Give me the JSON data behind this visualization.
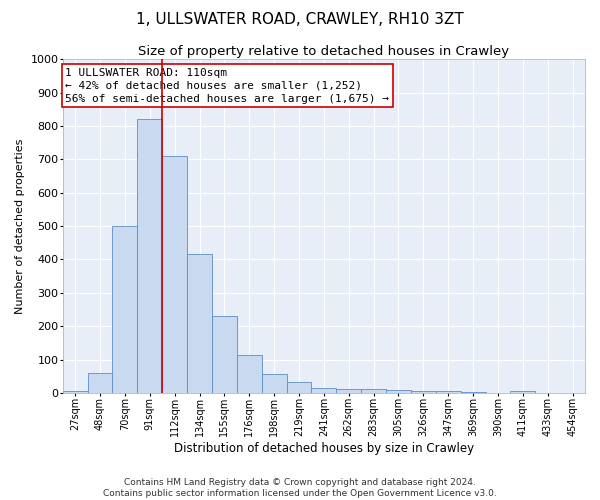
{
  "title1": "1, ULLSWATER ROAD, CRAWLEY, RH10 3ZT",
  "title2": "Size of property relative to detached houses in Crawley",
  "xlabel": "Distribution of detached houses by size in Crawley",
  "ylabel": "Number of detached properties",
  "bar_color": "#c8d9f0",
  "bar_edge_color": "#5b8ec4",
  "categories": [
    "27sqm",
    "48sqm",
    "70sqm",
    "91sqm",
    "112sqm",
    "134sqm",
    "155sqm",
    "176sqm",
    "198sqm",
    "219sqm",
    "241sqm",
    "262sqm",
    "283sqm",
    "305sqm",
    "326sqm",
    "347sqm",
    "369sqm",
    "390sqm",
    "411sqm",
    "433sqm",
    "454sqm"
  ],
  "values": [
    5,
    60,
    500,
    820,
    710,
    415,
    230,
    115,
    58,
    32,
    15,
    13,
    12,
    10,
    7,
    5,
    3,
    0,
    6,
    0,
    0
  ],
  "ylim": [
    0,
    1000
  ],
  "yticks": [
    0,
    100,
    200,
    300,
    400,
    500,
    600,
    700,
    800,
    900,
    1000
  ],
  "vline_x_index": 3.5,
  "vline_color": "#cc0000",
  "annotation_line1": "1 ULLSWATER ROAD: 110sqm",
  "annotation_line2": "← 42% of detached houses are smaller (1,252)",
  "annotation_line3": "56% of semi-detached houses are larger (1,675) →",
  "box_color": "#ffffff",
  "box_edge_color": "#cc0000",
  "footer1": "Contains HM Land Registry data © Crown copyright and database right 2024.",
  "footer2": "Contains public sector information licensed under the Open Government Licence v3.0.",
  "fig_facecolor": "#ffffff",
  "background_color": "#e8eef8",
  "grid_color": "#ffffff",
  "title1_fontsize": 11,
  "title2_fontsize": 9.5,
  "ylabel_fontsize": 8,
  "xlabel_fontsize": 8.5,
  "ytick_fontsize": 8,
  "xtick_fontsize": 7,
  "annotation_fontsize": 8,
  "footer_fontsize": 6.5
}
